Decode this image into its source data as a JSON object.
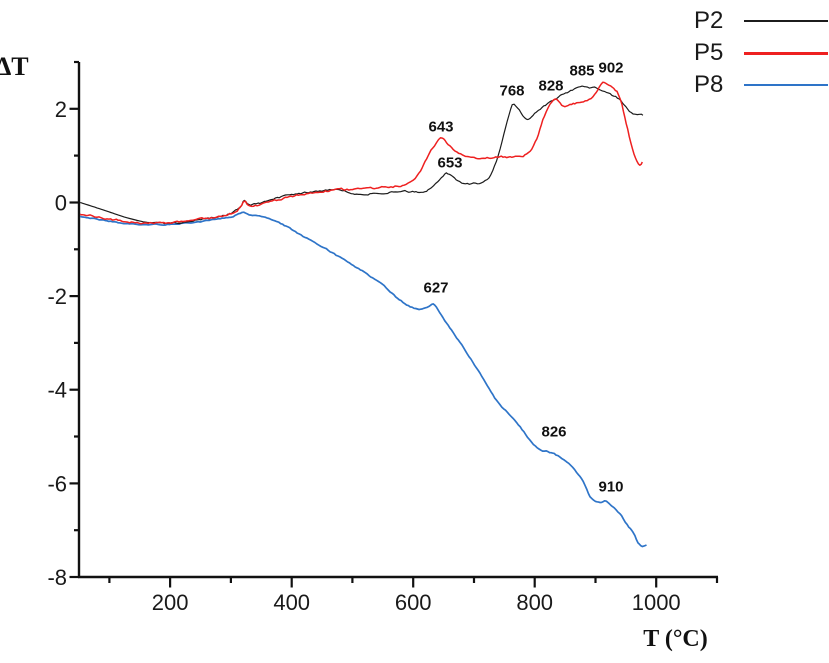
{
  "figure": {
    "background": "#ffffff",
    "axis_color": "#111111",
    "text_color": "#1a1a1a"
  },
  "chart_data": {
    "type": "line",
    "title": "",
    "xlabel": "T (°C)",
    "ylabel": "ΔT",
    "xlim": [
      50,
      1100
    ],
    "ylim": [
      -8,
      3
    ],
    "grid": false,
    "legend_position": "top-right",
    "x_major_ticks": [
      200,
      400,
      600,
      800,
      1000
    ],
    "x_minor_ticks": [
      100,
      300,
      500,
      700,
      900,
      1100
    ],
    "y_major_ticks": [
      2,
      0,
      -2,
      -4,
      -6,
      -8
    ],
    "y_minor_ticks": [
      3,
      1,
      -1,
      -3,
      -5,
      -7
    ],
    "series": [
      {
        "name": "P2",
        "color": "#1c1c1c",
        "width": 1.2,
        "noise": 1.5,
        "noise_from": 150,
        "points": [
          [
            52,
            0.0
          ],
          [
            90,
            -0.16
          ],
          [
            130,
            -0.33
          ],
          [
            165,
            -0.43
          ],
          [
            200,
            -0.44
          ],
          [
            235,
            -0.4
          ],
          [
            265,
            -0.34
          ],
          [
            295,
            -0.25
          ],
          [
            315,
            -0.1
          ],
          [
            322,
            0.06
          ],
          [
            330,
            -0.04
          ],
          [
            345,
            -0.02
          ],
          [
            365,
            0.06
          ],
          [
            400,
            0.16
          ],
          [
            440,
            0.24
          ],
          [
            480,
            0.27
          ],
          [
            510,
            0.18
          ],
          [
            545,
            0.2
          ],
          [
            580,
            0.25
          ],
          [
            610,
            0.22
          ],
          [
            630,
            0.32
          ],
          [
            649,
            0.58
          ],
          [
            657,
            0.61
          ],
          [
            668,
            0.52
          ],
          [
            680,
            0.42
          ],
          [
            696,
            0.4
          ],
          [
            715,
            0.44
          ],
          [
            728,
            0.6
          ],
          [
            740,
            1.0
          ],
          [
            752,
            1.6
          ],
          [
            763,
            2.08
          ],
          [
            772,
            2.0
          ],
          [
            783,
            1.82
          ],
          [
            790,
            1.77
          ],
          [
            800,
            1.9
          ],
          [
            815,
            2.05
          ],
          [
            825,
            2.16
          ],
          [
            845,
            2.3
          ],
          [
            862,
            2.4
          ],
          [
            878,
            2.48
          ],
          [
            890,
            2.45
          ],
          [
            902,
            2.44
          ],
          [
            918,
            2.33
          ],
          [
            936,
            2.23
          ],
          [
            950,
            2.05
          ],
          [
            962,
            1.9
          ],
          [
            978,
            1.86
          ]
        ]
      },
      {
        "name": "P5",
        "color": "#ee2020",
        "width": 1.5,
        "noise": 1.7,
        "noise_from": 40,
        "points": [
          [
            52,
            -0.25
          ],
          [
            90,
            -0.33
          ],
          [
            130,
            -0.41
          ],
          [
            170,
            -0.44
          ],
          [
            205,
            -0.43
          ],
          [
            240,
            -0.38
          ],
          [
            270,
            -0.32
          ],
          [
            300,
            -0.24
          ],
          [
            315,
            -0.12
          ],
          [
            322,
            0.02
          ],
          [
            332,
            -0.08
          ],
          [
            350,
            -0.04
          ],
          [
            375,
            0.05
          ],
          [
            405,
            0.14
          ],
          [
            440,
            0.22
          ],
          [
            470,
            0.26
          ],
          [
            500,
            0.28
          ],
          [
            530,
            0.31
          ],
          [
            560,
            0.33
          ],
          [
            585,
            0.38
          ],
          [
            600,
            0.5
          ],
          [
            612,
            0.68
          ],
          [
            622,
            0.92
          ],
          [
            632,
            1.15
          ],
          [
            645,
            1.37
          ],
          [
            655,
            1.28
          ],
          [
            666,
            1.13
          ],
          [
            678,
            1.02
          ],
          [
            692,
            0.97
          ],
          [
            710,
            0.94
          ],
          [
            730,
            0.95
          ],
          [
            748,
            0.97
          ],
          [
            765,
            0.98
          ],
          [
            781,
            1.0
          ],
          [
            795,
            1.12
          ],
          [
            806,
            1.45
          ],
          [
            816,
            1.85
          ],
          [
            828,
            2.16
          ],
          [
            837,
            2.19
          ],
          [
            847,
            2.05
          ],
          [
            858,
            2.08
          ],
          [
            869,
            2.12
          ],
          [
            883,
            2.16
          ],
          [
            896,
            2.27
          ],
          [
            906,
            2.45
          ],
          [
            912,
            2.55
          ],
          [
            920,
            2.54
          ],
          [
            930,
            2.42
          ],
          [
            938,
            2.3
          ],
          [
            946,
            1.95
          ],
          [
            953,
            1.55
          ],
          [
            961,
            1.15
          ],
          [
            968,
            0.88
          ],
          [
            973,
            0.78
          ],
          [
            977,
            0.88
          ]
        ]
      },
      {
        "name": "P8",
        "color": "#2e74c8",
        "width": 1.7,
        "noise": 1.0,
        "noise_from": 40,
        "points": [
          [
            52,
            -0.3
          ],
          [
            90,
            -0.38
          ],
          [
            130,
            -0.45
          ],
          [
            170,
            -0.47
          ],
          [
            205,
            -0.46
          ],
          [
            240,
            -0.42
          ],
          [
            270,
            -0.37
          ],
          [
            300,
            -0.31
          ],
          [
            318,
            -0.22
          ],
          [
            330,
            -0.26
          ],
          [
            344,
            -0.28
          ],
          [
            360,
            -0.34
          ],
          [
            382,
            -0.45
          ],
          [
            403,
            -0.6
          ],
          [
            425,
            -0.77
          ],
          [
            448,
            -0.93
          ],
          [
            470,
            -1.1
          ],
          [
            495,
            -1.3
          ],
          [
            513,
            -1.44
          ],
          [
            530,
            -1.58
          ],
          [
            546,
            -1.72
          ],
          [
            565,
            -1.94
          ],
          [
            580,
            -2.1
          ],
          [
            595,
            -2.22
          ],
          [
            607,
            -2.28
          ],
          [
            617,
            -2.26
          ],
          [
            626,
            -2.22
          ],
          [
            633,
            -2.17
          ],
          [
            641,
            -2.29
          ],
          [
            652,
            -2.52
          ],
          [
            666,
            -2.79
          ],
          [
            680,
            -3.05
          ],
          [
            695,
            -3.35
          ],
          [
            710,
            -3.65
          ],
          [
            725,
            -3.97
          ],
          [
            740,
            -4.28
          ],
          [
            755,
            -4.48
          ],
          [
            770,
            -4.7
          ],
          [
            785,
            -4.95
          ],
          [
            798,
            -5.18
          ],
          [
            810,
            -5.28
          ],
          [
            822,
            -5.32
          ],
          [
            832,
            -5.37
          ],
          [
            845,
            -5.47
          ],
          [
            856,
            -5.58
          ],
          [
            869,
            -5.77
          ],
          [
            880,
            -5.98
          ],
          [
            891,
            -6.28
          ],
          [
            900,
            -6.38
          ],
          [
            910,
            -6.42
          ],
          [
            918,
            -6.38
          ],
          [
            928,
            -6.5
          ],
          [
            940,
            -6.65
          ],
          [
            952,
            -6.88
          ],
          [
            962,
            -7.05
          ],
          [
            970,
            -7.26
          ],
          [
            977,
            -7.35
          ],
          [
            984,
            -7.33
          ]
        ]
      }
    ],
    "annotations": [
      {
        "text": "643",
        "T": 645,
        "dT": 1.62,
        "series": "P5"
      },
      {
        "text": "653",
        "T": 661,
        "dT": 0.85,
        "series": "P2"
      },
      {
        "text": "768",
        "T": 763,
        "dT": 2.37,
        "series": "P2"
      },
      {
        "text": "828",
        "T": 826,
        "dT": 2.48,
        "series": "P5"
      },
      {
        "text": "885",
        "T": 878,
        "dT": 2.8,
        "series": "P2"
      },
      {
        "text": "902",
        "T": 925,
        "dT": 2.87,
        "series": "P5"
      },
      {
        "text": "627",
        "T": 637,
        "dT": -1.83,
        "series": "P8"
      },
      {
        "text": "826",
        "T": 832,
        "dT": -4.9,
        "series": "P8"
      },
      {
        "text": "910",
        "T": 926,
        "dT": -6.08,
        "series": "P8"
      }
    ]
  }
}
